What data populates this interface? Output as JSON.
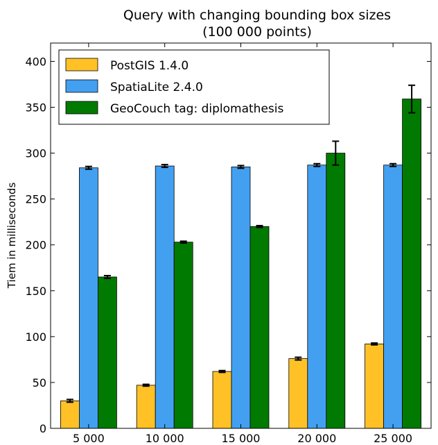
{
  "chart_data": {
    "type": "bar",
    "title": "Query with changing bounding box sizes",
    "subtitle": "(100 000 points)",
    "xlabel": "",
    "ylabel": "Tiem in milliseconds",
    "categories": [
      "5 000",
      "10 000",
      "15 000",
      "20 000",
      "25 000"
    ],
    "ylim": [
      0,
      420
    ],
    "yticks": [
      0,
      50,
      100,
      150,
      200,
      250,
      300,
      350,
      400
    ],
    "grid": false,
    "legend_position": "top-left",
    "series": [
      {
        "name": "PostGIS 1.4.0",
        "color": "#ffc125",
        "values": [
          30,
          47,
          62,
          76,
          92
        ],
        "errors": [
          1.5,
          1,
          1,
          1.5,
          1
        ]
      },
      {
        "name": "SpatiaLite 2.4.0",
        "color": "#43a0f0",
        "values": [
          284,
          286,
          285,
          287,
          287
        ],
        "errors": [
          1.5,
          1.5,
          1.5,
          1.5,
          1.5
        ]
      },
      {
        "name": "GeoCouch tag: diplomathesis",
        "color": "#007a00",
        "values": [
          165,
          203,
          220,
          300,
          359
        ],
        "errors": [
          1.5,
          1,
          1,
          13,
          15
        ]
      }
    ]
  }
}
